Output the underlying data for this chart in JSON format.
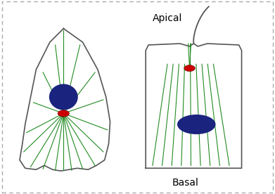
{
  "background_color": "#ffffff",
  "border_color": "#aaaaaa",
  "cell_outline_color": "#555555",
  "mt_color": "#228B22",
  "nucleus_color": "#1a237e",
  "centrosome_color": "#cc0000",
  "label_apical": "Apical",
  "label_basal": "Basal",
  "label_fontsize": 10,
  "fig_width": 3.91,
  "fig_height": 2.76,
  "dpi": 100
}
